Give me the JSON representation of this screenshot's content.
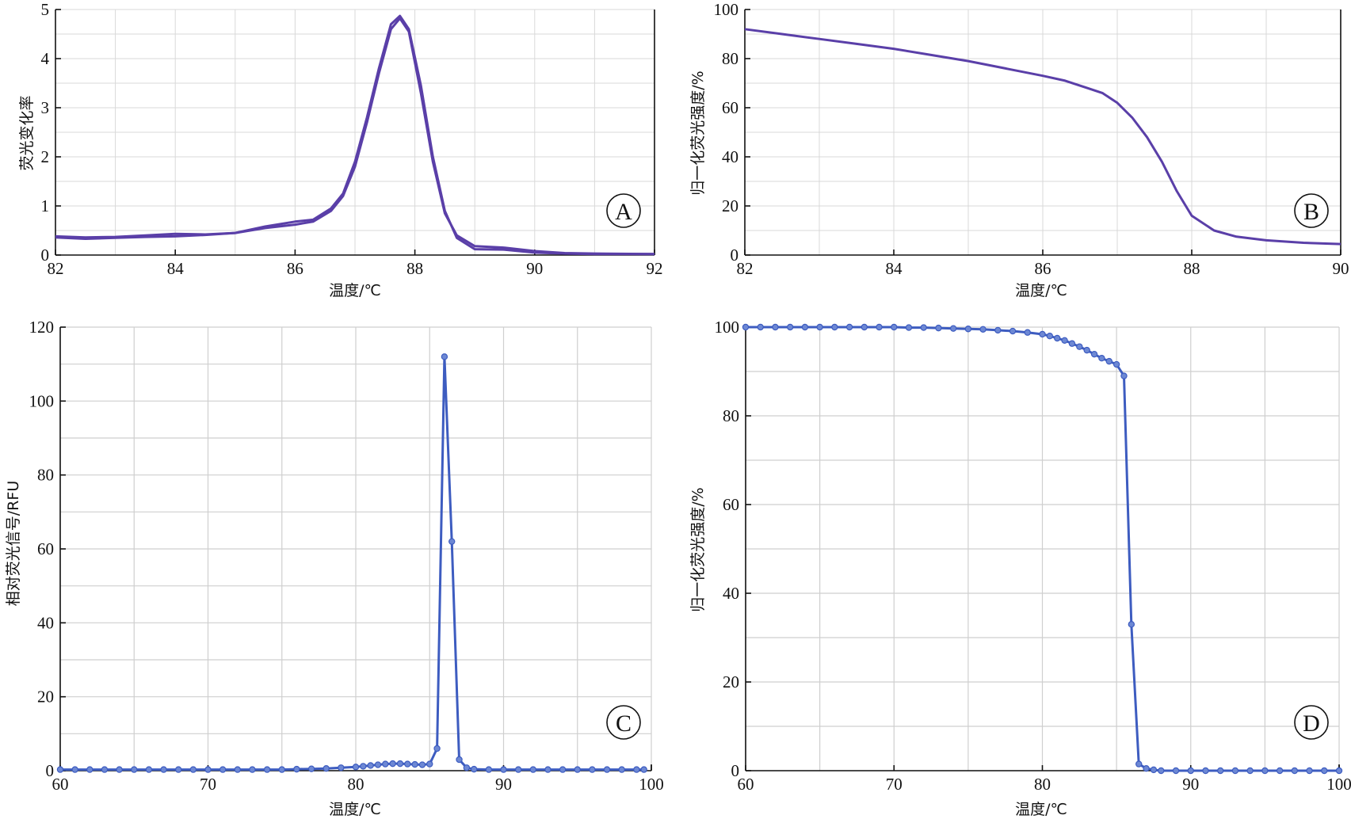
{
  "chart_data": [
    {
      "panel": "A",
      "type": "line",
      "xlabel": "温度/℃",
      "ylabel": "荧光变化率",
      "xlim": [
        82,
        92
      ],
      "ylim": [
        0,
        5
      ],
      "xticks": [
        82,
        84,
        86,
        88,
        90,
        92
      ],
      "yticks": [
        0,
        1,
        2,
        3,
        4,
        5
      ],
      "grid": true,
      "series": [
        {
          "x": [
            82.0,
            82.5,
            83.0,
            83.5,
            84.0,
            84.5,
            85.0,
            85.5,
            86.0,
            86.3,
            86.6,
            86.8,
            87.0,
            87.2,
            87.4,
            87.6,
            87.75,
            87.9,
            88.1,
            88.3,
            88.5,
            88.7,
            89.0,
            89.5,
            90.0,
            90.5,
            91.0,
            92.0
          ],
          "y": [
            0.38,
            0.36,
            0.37,
            0.4,
            0.43,
            0.42,
            0.45,
            0.55,
            0.62,
            0.68,
            0.9,
            1.2,
            1.8,
            2.7,
            3.7,
            4.6,
            4.82,
            4.55,
            3.3,
            1.9,
            0.85,
            0.4,
            0.18,
            0.15,
            0.08,
            0.04,
            0.03,
            0.02
          ]
        },
        {
          "x": [
            82.0,
            82.5,
            83.0,
            83.5,
            84.0,
            84.5,
            85.0,
            85.5,
            86.0,
            86.3,
            86.6,
            86.8,
            87.0,
            87.2,
            87.4,
            87.6,
            87.75,
            87.9,
            88.1,
            88.3,
            88.5,
            88.7,
            89.0,
            89.5,
            90.0,
            90.5,
            91.0,
            92.0
          ],
          "y": [
            0.36,
            0.33,
            0.35,
            0.37,
            0.38,
            0.41,
            0.45,
            0.58,
            0.68,
            0.72,
            0.95,
            1.25,
            1.9,
            2.8,
            3.8,
            4.7,
            4.87,
            4.6,
            3.45,
            2.0,
            0.9,
            0.35,
            0.12,
            0.11,
            0.05,
            0.03,
            0.02,
            0.02
          ]
        }
      ],
      "annotation": "A"
    },
    {
      "panel": "B",
      "type": "line",
      "xlabel": "温度/℃",
      "ylabel": "归一化荧光强度/%",
      "xlim": [
        82,
        90
      ],
      "ylim": [
        0,
        100
      ],
      "xticks": [
        82,
        84,
        86,
        88,
        90
      ],
      "yticks": [
        0,
        20,
        40,
        60,
        80,
        100
      ],
      "grid": true,
      "series": [
        {
          "x": [
            82.0,
            82.5,
            83.0,
            83.5,
            84.0,
            84.5,
            85.0,
            85.5,
            86.0,
            86.3,
            86.6,
            86.8,
            87.0,
            87.2,
            87.4,
            87.6,
            87.8,
            88.0,
            88.3,
            88.6,
            89.0,
            89.5,
            90.0
          ],
          "y": [
            92,
            90,
            88,
            86,
            84,
            81.5,
            79,
            76,
            73,
            71,
            68,
            66,
            62,
            56,
            48,
            38,
            26,
            16,
            10,
            7.5,
            6,
            5,
            4.5
          ]
        }
      ],
      "annotation": "B"
    },
    {
      "panel": "C",
      "type": "line",
      "xlabel": "温度/℃",
      "ylabel": "相对荧光信号/RFU",
      "xlim": [
        60,
        100
      ],
      "ylim": [
        0,
        120
      ],
      "xticks": [
        60,
        70,
        80,
        90,
        100
      ],
      "yticks": [
        0,
        20,
        40,
        60,
        80,
        100,
        120
      ],
      "grid": true,
      "markers": true,
      "series": [
        {
          "x": [
            60,
            61,
            62,
            63,
            64,
            65,
            66,
            67,
            68,
            69,
            70,
            71,
            72,
            73,
            74,
            75,
            76,
            77,
            78,
            79,
            80,
            80.5,
            81,
            81.5,
            82,
            82.5,
            83,
            83.5,
            84,
            84.5,
            85,
            85.5,
            86,
            86.5,
            87,
            87.5,
            88,
            89,
            90,
            91,
            92,
            93,
            94,
            95,
            96,
            97,
            98,
            99,
            99.5
          ],
          "y": [
            0.3,
            0.3,
            0.3,
            0.3,
            0.3,
            0.3,
            0.3,
            0.3,
            0.3,
            0.3,
            0.3,
            0.3,
            0.3,
            0.3,
            0.3,
            0.3,
            0.4,
            0.5,
            0.6,
            0.8,
            1.0,
            1.2,
            1.4,
            1.6,
            1.8,
            1.9,
            1.9,
            1.8,
            1.7,
            1.6,
            1.8,
            6,
            112,
            62,
            3,
            0.8,
            0.4,
            0.3,
            0.3,
            0.3,
            0.3,
            0.3,
            0.3,
            0.3,
            0.3,
            0.3,
            0.3,
            0.3,
            0.3
          ]
        }
      ],
      "annotation": "C"
    },
    {
      "panel": "D",
      "type": "line",
      "xlabel": "温度/℃",
      "ylabel": "归一化荧光强度/%",
      "xlim": [
        60,
        100
      ],
      "ylim": [
        0,
        100
      ],
      "xticks": [
        60,
        70,
        80,
        90,
        100
      ],
      "yticks": [
        0,
        20,
        40,
        60,
        80,
        100
      ],
      "grid": true,
      "markers": true,
      "series": [
        {
          "x": [
            60,
            61,
            62,
            63,
            64,
            65,
            66,
            67,
            68,
            69,
            70,
            71,
            72,
            73,
            74,
            75,
            76,
            77,
            78,
            79,
            80,
            80.5,
            81,
            81.5,
            82,
            82.5,
            83,
            83.5,
            84,
            84.5,
            85,
            85.5,
            86,
            86.5,
            87,
            87.5,
            88,
            89,
            90,
            91,
            92,
            93,
            94,
            95,
            96,
            97,
            98,
            99,
            100
          ],
          "y": [
            100,
            100,
            100,
            100,
            100,
            100,
            100,
            100,
            100,
            100,
            100,
            99.9,
            99.9,
            99.8,
            99.7,
            99.6,
            99.5,
            99.3,
            99.1,
            98.8,
            98.4,
            98.0,
            97.5,
            97.0,
            96.3,
            95.6,
            94.8,
            93.9,
            93.0,
            92.3,
            91.6,
            89,
            33,
            1.5,
            0.5,
            0.2,
            0,
            0,
            0,
            0,
            0,
            0,
            0,
            0,
            0,
            0,
            0,
            0,
            0
          ]
        }
      ],
      "annotation": "D"
    }
  ]
}
